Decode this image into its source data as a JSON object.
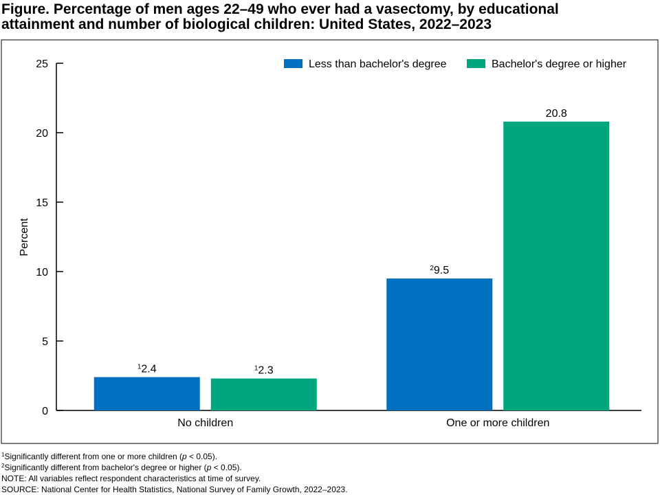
{
  "chart_data": {
    "type": "bar",
    "title": [
      "Figure. Percentage of men ages 22–49 who ever had a vasectomy, by educational",
      "attainment and number of biological children: United States, 2022–2023"
    ],
    "y_label": "Percent",
    "categories": [
      "No children",
      "One or more children"
    ],
    "series": [
      {
        "name": "Less than bachelor's degree",
        "color": "#0070c0",
        "values": [
          2.4,
          9.5
        ],
        "notes": [
          "1",
          "2"
        ]
      },
      {
        "name": "Bachelor's degree or higher",
        "color": "#00a77e",
        "values": [
          2.3,
          20.8
        ],
        "notes": [
          "1",
          null
        ]
      }
    ],
    "ylim": [
      0,
      25
    ],
    "yticks": [
      0,
      5,
      10,
      15,
      20,
      25
    ],
    "legend": "top-right",
    "footnotes": [
      {
        "mark": "1",
        "parts": [
          "Significantly different from one or more children (",
          "p",
          " < 0.05)."
        ]
      },
      {
        "mark": "2",
        "parts": [
          "Significantly different from bachelor's degree or higher (",
          "p",
          " < 0.05)."
        ]
      }
    ],
    "note": "NOTE: All variables reflect respondent characteristics at time of survey.",
    "source": "SOURCE: National Center for Health Statistics, National Survey of Family Growth, 2022–2023."
  }
}
